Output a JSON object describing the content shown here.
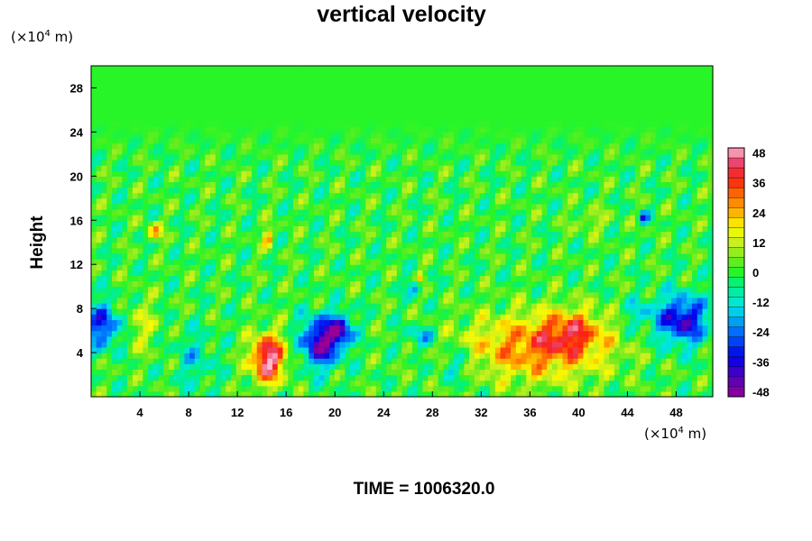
{
  "chart_data": {
    "type": "heatmap",
    "title": "vertical velocity",
    "xlabel": "",
    "ylabel": "Height",
    "x_unit_prefix": "(×10",
    "x_unit_exp": "4",
    "x_unit_suffix": " m)",
    "y_unit_prefix": "(×10",
    "y_unit_exp": "4",
    "y_unit_suffix": " m)",
    "xlim": [
      0,
      51
    ],
    "ylim": [
      0,
      30
    ],
    "x_ticks": [
      "4",
      "8",
      "12",
      "16",
      "20",
      "24",
      "28",
      "32",
      "36",
      "40",
      "44",
      "48"
    ],
    "y_ticks": [
      "4",
      "8",
      "12",
      "16",
      "20",
      "24",
      "28"
    ],
    "colorbar": {
      "range": [
        -50,
        50
      ],
      "tick_labels": [
        "48",
        "36",
        "24",
        "12",
        "0",
        "-12",
        "-24",
        "-36",
        "-48"
      ]
    },
    "features": [
      {
        "x": 14.5,
        "y": 3.5,
        "value": 50,
        "sx": 1.4,
        "sy": 2.2
      },
      {
        "x": 36.5,
        "y": 4.5,
        "value": 30,
        "sx": 6.0,
        "sy": 3.0
      },
      {
        "x": 39.5,
        "y": 6.0,
        "value": 22,
        "sx": 2.5,
        "sy": 2.0
      },
      {
        "x": 18.8,
        "y": 5.0,
        "value": -46,
        "sx": 1.5,
        "sy": 2.2
      },
      {
        "x": 20.5,
        "y": 6.0,
        "value": -35,
        "sx": 1.0,
        "sy": 1.5
      },
      {
        "x": 48.5,
        "y": 7.0,
        "value": -40,
        "sx": 2.0,
        "sy": 2.2
      },
      {
        "x": 1.0,
        "y": 6.5,
        "value": -32,
        "sx": 1.5,
        "sy": 2.0
      },
      {
        "x": 5.2,
        "y": 15.0,
        "value": 24,
        "sx": 0.6,
        "sy": 0.8
      },
      {
        "x": 14.5,
        "y": 14.5,
        "value": 28,
        "sx": 0.4,
        "sy": 0.8
      },
      {
        "x": 27.0,
        "y": 10.8,
        "value": 24,
        "sx": 0.4,
        "sy": 0.5
      },
      {
        "x": 26.5,
        "y": 10.0,
        "value": -22,
        "sx": 0.6,
        "sy": 0.8
      },
      {
        "x": 27.0,
        "y": 5.5,
        "value": -18,
        "sx": 1.2,
        "sy": 1.0
      },
      {
        "x": 8.5,
        "y": 3.5,
        "value": -12,
        "sx": 1.5,
        "sy": 2.5
      },
      {
        "x": 4.0,
        "y": 6.5,
        "value": 12,
        "sx": 1.5,
        "sy": 2.5
      },
      {
        "x": 45.0,
        "y": 7.5,
        "value": -12,
        "sx": 1.5,
        "sy": 1.5
      },
      {
        "x": 45.3,
        "y": 16.3,
        "value": -28,
        "sx": 0.4,
        "sy": 0.6
      },
      {
        "x": 41.0,
        "y": 16.0,
        "value": 10,
        "sx": 1.5,
        "sy": 1.0
      },
      {
        "x": 30.0,
        "y": 3.0,
        "value": -14,
        "sx": 1.5,
        "sy": 1.5
      }
    ],
    "time_text": "TIME = 1006320.0"
  }
}
